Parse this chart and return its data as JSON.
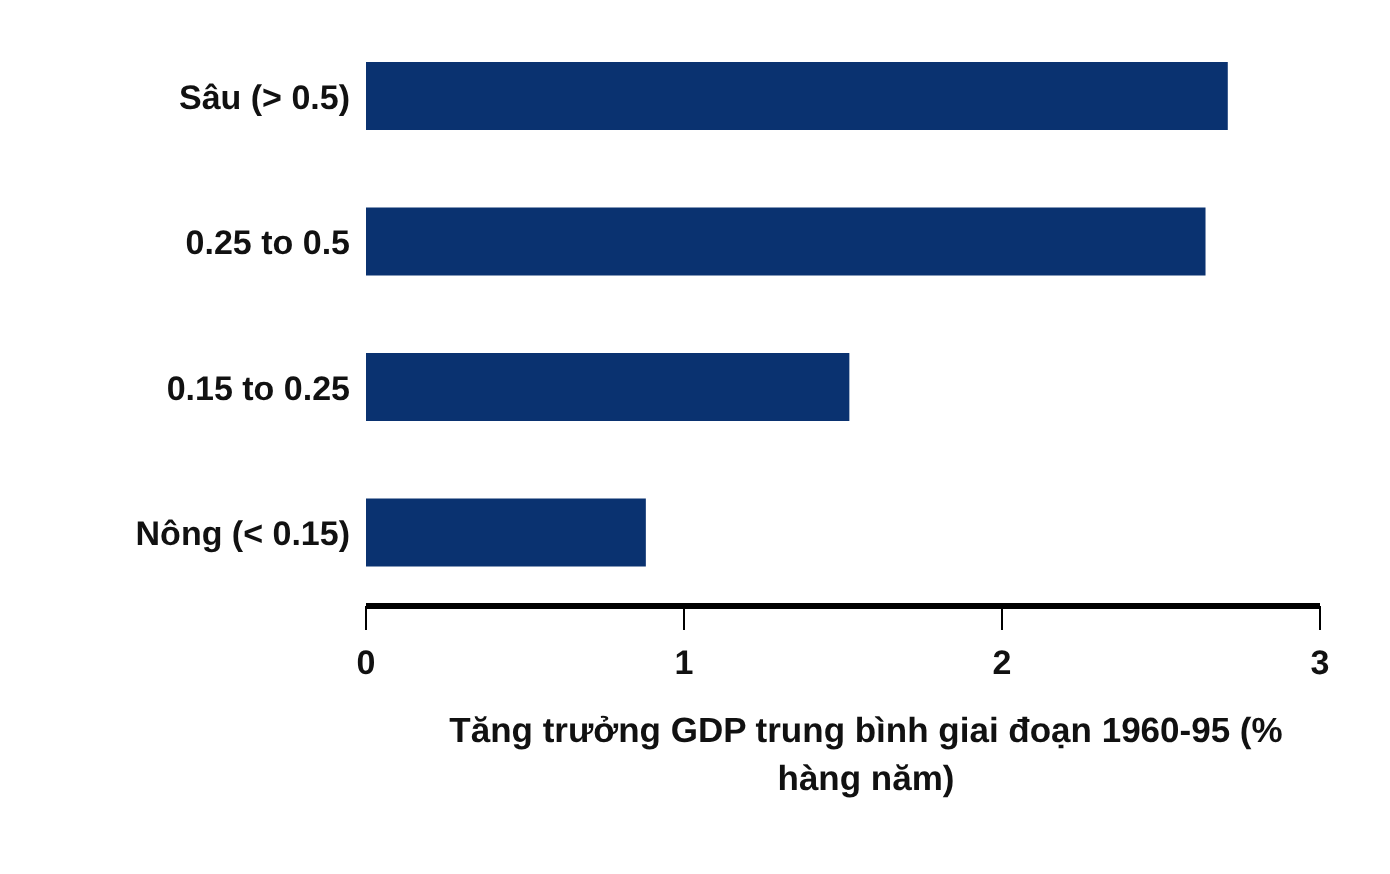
{
  "chart_data": {
    "type": "bar",
    "orientation": "horizontal",
    "categories": [
      "Sâu (> 0.5)",
      "0.25 to 0.5",
      "0.15 to 0.25",
      "Nông (< 0.15)"
    ],
    "values": [
      2.71,
      2.64,
      1.52,
      0.88
    ],
    "color": "#0a3270",
    "xlabel": "Tăng trưởng GDP trung bình giai đoạn 1960-95 (% hàng năm)",
    "xlim": [
      0,
      3
    ],
    "xticks": [
      0,
      1,
      2,
      3
    ],
    "grid": false
  }
}
